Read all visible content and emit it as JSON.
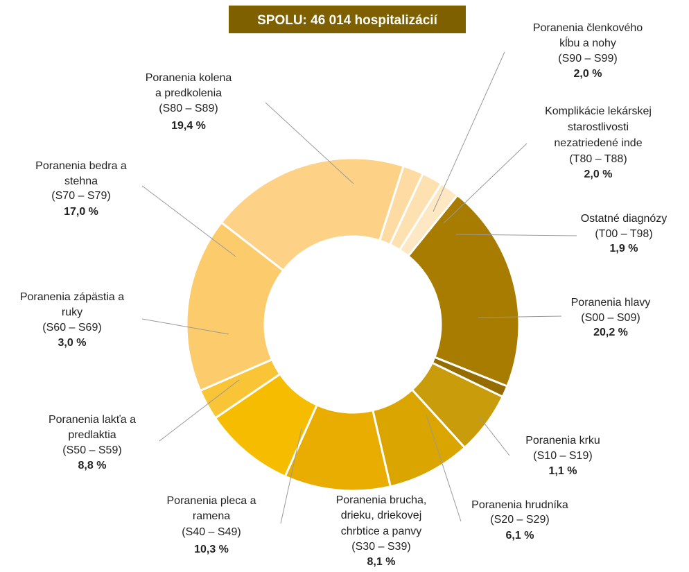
{
  "chart_data": {
    "type": "donut",
    "title": "SPOLU: 46 014 hospitalizácií",
    "start_angle": 39,
    "categories": [
      [
        "Poranenia hlavy",
        "(S00 – S09)"
      ],
      [
        "Poranenia krku",
        "(S10 – S19)"
      ],
      [
        "Poranenia hrudníka",
        "(S20 – S29)"
      ],
      [
        "Poranenia brucha,",
        "drieku, driekovej",
        "chrbtice a panvy",
        "(S30 – S39)"
      ],
      [
        "Poranenia pleca a",
        "ramena",
        "(S40 – S49)"
      ],
      [
        "Poranenia lakťa a",
        "predlaktia",
        "(S50 – S59)"
      ],
      [
        "Poranenia zápästia a",
        "ruky",
        "(S60 – S69)"
      ],
      [
        "Poranenia bedra a",
        "stehna",
        "(S70 – S79)"
      ],
      [
        "Poranenia kolena",
        "a predkolenia",
        "(S80 – S89)"
      ],
      [
        "Poranenia členkového",
        "kĺbu a nohy",
        "(S90 – S99)"
      ],
      [
        "Komplikácie lekárskej",
        "starostlivosti",
        "nezatriedené inde",
        "(T80 – T88)"
      ],
      [
        "Ostatné diagnózy",
        "(T00 – T98)"
      ]
    ],
    "values": [
      20.2,
      1.1,
      6.1,
      8.1,
      10.3,
      8.8,
      3.0,
      17.0,
      19.4,
      2.0,
      2.0,
      1.9
    ],
    "value_labels": [
      "20,2 %",
      "1,1 %",
      "6,1 %",
      "8,1 %",
      "10,3 %",
      "8,8 %",
      "3,0 %",
      "17,0 %",
      "19,4 %",
      "2,0 %",
      "2,0 %",
      "1,9 %"
    ],
    "colors": [
      "#a87c00",
      "#946c00",
      "#c99c0c",
      "#dba500",
      "#e8ad00",
      "#f6bc00",
      "#f9c435",
      "#fccb6c",
      "#fdd287",
      "#fddba2",
      "#fde1b1",
      "#fee7c3"
    ],
    "title_color": "#7f6000"
  }
}
